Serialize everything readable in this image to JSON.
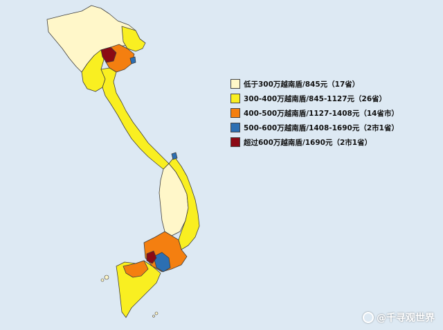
{
  "map": {
    "colors": {
      "below_300": "#fff7c9",
      "300_400": "#f9ef21",
      "400_500": "#f47f10",
      "500_600": "#2c6fb3",
      "above_600": "#8b0a14",
      "border": "#3d3d3d",
      "sea": "#dde9f3"
    },
    "regions": [
      {
        "name": "north-highlands",
        "tier": "below_300"
      },
      {
        "name": "north-provinces",
        "tier": "300_400"
      },
      {
        "name": "red-river-delta",
        "tier": "400_500"
      },
      {
        "name": "hanoi",
        "tier": "above_600"
      },
      {
        "name": "hai-phong",
        "tier": "500_600"
      },
      {
        "name": "north-central-coast",
        "tier": "300_400"
      },
      {
        "name": "central-highlands",
        "tier": "below_300"
      },
      {
        "name": "south-central-coast",
        "tier": "300_400"
      },
      {
        "name": "da-nang",
        "tier": "500_600"
      },
      {
        "name": "southeast",
        "tier": "400_500"
      },
      {
        "name": "ho-chi-minh-city",
        "tier": "500_600"
      },
      {
        "name": "binh-duong",
        "tier": "above_600"
      },
      {
        "name": "mekong-delta",
        "tier": "300_400"
      },
      {
        "name": "mekong-delta-west",
        "tier": "400_500"
      }
    ]
  },
  "legend": [
    {
      "label": "低于300万越南盾/845元（17省）",
      "color": "#fff7c9"
    },
    {
      "label": "300-400万越南盾/845-1127元（26省）",
      "color": "#f9ef21"
    },
    {
      "label": "400-500万越南盾/1127-1408元（14省市）",
      "color": "#f47f10"
    },
    {
      "label": "500-600万越南盾/1408-1690元（2市1省）",
      "color": "#2c6fb3"
    },
    {
      "label": "超过600万越南盾/1690元（2市1省）",
      "color": "#8b0a14"
    }
  ],
  "watermark": {
    "text": "@千寻观世界"
  }
}
